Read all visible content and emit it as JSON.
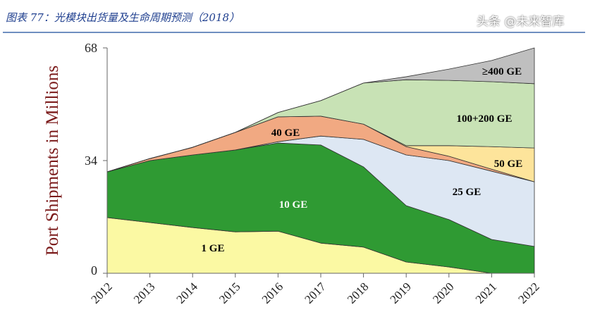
{
  "header": {
    "title": "图表 77：光模块出货量及生命周期预测（2018）"
  },
  "watermark": "头条 @未来智库",
  "chart_data": {
    "type": "area",
    "stacked": true,
    "title": "图表 77：光模块出货量及生命周期预测（2018）",
    "xlabel": "",
    "ylabel": "Port Shipments in Millions",
    "x": [
      "2012",
      "2013",
      "2014",
      "2015",
      "2016",
      "2017",
      "2018",
      "2019",
      "2020",
      "2021",
      "2022"
    ],
    "ylim": [
      0,
      68
    ],
    "yticks": [
      "0",
      "34",
      "68"
    ],
    "series": [
      {
        "name": "1 GE",
        "color": "#fbf9a3",
        "values": [
          16.8,
          15.3,
          13.8,
          12.5,
          12.7,
          9.1,
          7.9,
          3.4,
          1.9,
          0,
          0
        ]
      },
      {
        "name": "10 GE",
        "color": "#2f9a33",
        "values": [
          13.8,
          18.7,
          21.9,
          24.7,
          26.6,
          29.6,
          24.2,
          17.0,
          14.3,
          10.2,
          8.1
        ]
      },
      {
        "name": "25 GE",
        "color": "#dde7f3",
        "values": [
          0,
          0,
          0,
          0,
          0.4,
          2.7,
          8.3,
          15.3,
          17.8,
          20.6,
          19.5
        ]
      },
      {
        "name": "40 GE",
        "color": "#f1a982",
        "values": [
          0,
          0.6,
          2.3,
          5.3,
          7.5,
          6.0,
          4.6,
          2.5,
          1.3,
          0.6,
          0
        ]
      },
      {
        "name": "50 GE",
        "color": "#fde49b",
        "values": [
          0,
          0,
          0,
          0,
          0,
          0,
          0,
          0.3,
          3.2,
          6.8,
          10.2
        ]
      },
      {
        "name": "100+200 GE",
        "color": "#c8e2b5",
        "values": [
          0,
          0,
          0,
          0,
          1.3,
          4.7,
          12.4,
          19.9,
          19.7,
          19.6,
          19.4
        ]
      },
      {
        "name": "≥400 GE",
        "color": "#bfbfbf",
        "values": [
          0,
          0,
          0,
          0,
          0,
          0,
          0,
          0.9,
          3.4,
          6.4,
          10.8
        ]
      }
    ],
    "annotations": [
      "1 GE",
      "10 GE",
      "25 GE",
      "40 GE",
      "50 GE",
      "100+200 GE",
      "≥400 GE"
    ]
  }
}
